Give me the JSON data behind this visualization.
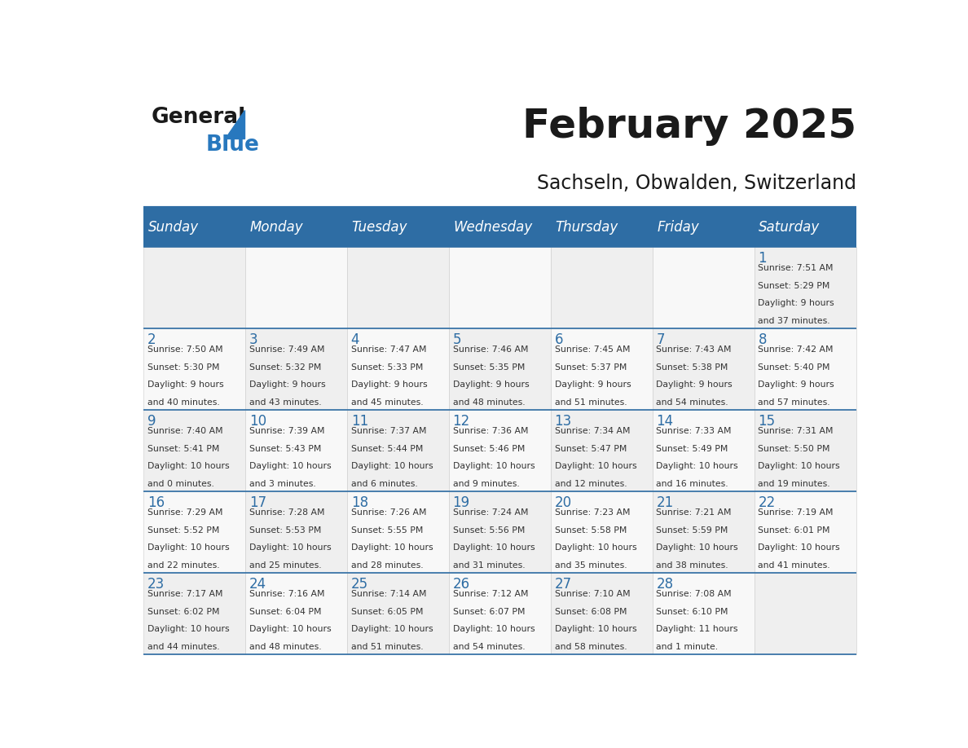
{
  "title": "February 2025",
  "subtitle": "Sachseln, Obwalden, Switzerland",
  "header_bg": "#2E6DA4",
  "header_text": "#FFFFFF",
  "border_color": "#2E6DA4",
  "day_headers": [
    "Sunday",
    "Monday",
    "Tuesday",
    "Wednesday",
    "Thursday",
    "Friday",
    "Saturday"
  ],
  "title_color": "#1a1a1a",
  "subtitle_color": "#1a1a1a",
  "day_num_color": "#2E6DA4",
  "cell_text_color": "#333333",
  "logo_general_color": "#1a1a1a",
  "logo_blue_color": "#2878BE",
  "cell_bg1": "#EFEFEF",
  "cell_bg2": "#F8F8F8",
  "weeks": [
    [
      {
        "day": null,
        "sunrise": null,
        "sunset": null,
        "daylight": null
      },
      {
        "day": null,
        "sunrise": null,
        "sunset": null,
        "daylight": null
      },
      {
        "day": null,
        "sunrise": null,
        "sunset": null,
        "daylight": null
      },
      {
        "day": null,
        "sunrise": null,
        "sunset": null,
        "daylight": null
      },
      {
        "day": null,
        "sunrise": null,
        "sunset": null,
        "daylight": null
      },
      {
        "day": null,
        "sunrise": null,
        "sunset": null,
        "daylight": null
      },
      {
        "day": 1,
        "sunrise": "7:51 AM",
        "sunset": "5:29 PM",
        "daylight": "9 hours\nand 37 minutes."
      }
    ],
    [
      {
        "day": 2,
        "sunrise": "7:50 AM",
        "sunset": "5:30 PM",
        "daylight": "9 hours\nand 40 minutes."
      },
      {
        "day": 3,
        "sunrise": "7:49 AM",
        "sunset": "5:32 PM",
        "daylight": "9 hours\nand 43 minutes."
      },
      {
        "day": 4,
        "sunrise": "7:47 AM",
        "sunset": "5:33 PM",
        "daylight": "9 hours\nand 45 minutes."
      },
      {
        "day": 5,
        "sunrise": "7:46 AM",
        "sunset": "5:35 PM",
        "daylight": "9 hours\nand 48 minutes."
      },
      {
        "day": 6,
        "sunrise": "7:45 AM",
        "sunset": "5:37 PM",
        "daylight": "9 hours\nand 51 minutes."
      },
      {
        "day": 7,
        "sunrise": "7:43 AM",
        "sunset": "5:38 PM",
        "daylight": "9 hours\nand 54 minutes."
      },
      {
        "day": 8,
        "sunrise": "7:42 AM",
        "sunset": "5:40 PM",
        "daylight": "9 hours\nand 57 minutes."
      }
    ],
    [
      {
        "day": 9,
        "sunrise": "7:40 AM",
        "sunset": "5:41 PM",
        "daylight": "10 hours\nand 0 minutes."
      },
      {
        "day": 10,
        "sunrise": "7:39 AM",
        "sunset": "5:43 PM",
        "daylight": "10 hours\nand 3 minutes."
      },
      {
        "day": 11,
        "sunrise": "7:37 AM",
        "sunset": "5:44 PM",
        "daylight": "10 hours\nand 6 minutes."
      },
      {
        "day": 12,
        "sunrise": "7:36 AM",
        "sunset": "5:46 PM",
        "daylight": "10 hours\nand 9 minutes."
      },
      {
        "day": 13,
        "sunrise": "7:34 AM",
        "sunset": "5:47 PM",
        "daylight": "10 hours\nand 12 minutes."
      },
      {
        "day": 14,
        "sunrise": "7:33 AM",
        "sunset": "5:49 PM",
        "daylight": "10 hours\nand 16 minutes."
      },
      {
        "day": 15,
        "sunrise": "7:31 AM",
        "sunset": "5:50 PM",
        "daylight": "10 hours\nand 19 minutes."
      }
    ],
    [
      {
        "day": 16,
        "sunrise": "7:29 AM",
        "sunset": "5:52 PM",
        "daylight": "10 hours\nand 22 minutes."
      },
      {
        "day": 17,
        "sunrise": "7:28 AM",
        "sunset": "5:53 PM",
        "daylight": "10 hours\nand 25 minutes."
      },
      {
        "day": 18,
        "sunrise": "7:26 AM",
        "sunset": "5:55 PM",
        "daylight": "10 hours\nand 28 minutes."
      },
      {
        "day": 19,
        "sunrise": "7:24 AM",
        "sunset": "5:56 PM",
        "daylight": "10 hours\nand 31 minutes."
      },
      {
        "day": 20,
        "sunrise": "7:23 AM",
        "sunset": "5:58 PM",
        "daylight": "10 hours\nand 35 minutes."
      },
      {
        "day": 21,
        "sunrise": "7:21 AM",
        "sunset": "5:59 PM",
        "daylight": "10 hours\nand 38 minutes."
      },
      {
        "day": 22,
        "sunrise": "7:19 AM",
        "sunset": "6:01 PM",
        "daylight": "10 hours\nand 41 minutes."
      }
    ],
    [
      {
        "day": 23,
        "sunrise": "7:17 AM",
        "sunset": "6:02 PM",
        "daylight": "10 hours\nand 44 minutes."
      },
      {
        "day": 24,
        "sunrise": "7:16 AM",
        "sunset": "6:04 PM",
        "daylight": "10 hours\nand 48 minutes."
      },
      {
        "day": 25,
        "sunrise": "7:14 AM",
        "sunset": "6:05 PM",
        "daylight": "10 hours\nand 51 minutes."
      },
      {
        "day": 26,
        "sunrise": "7:12 AM",
        "sunset": "6:07 PM",
        "daylight": "10 hours\nand 54 minutes."
      },
      {
        "day": 27,
        "sunrise": "7:10 AM",
        "sunset": "6:08 PM",
        "daylight": "10 hours\nand 58 minutes."
      },
      {
        "day": 28,
        "sunrise": "7:08 AM",
        "sunset": "6:10 PM",
        "daylight": "11 hours\nand 1 minute."
      },
      {
        "day": null,
        "sunrise": null,
        "sunset": null,
        "daylight": null
      }
    ]
  ]
}
